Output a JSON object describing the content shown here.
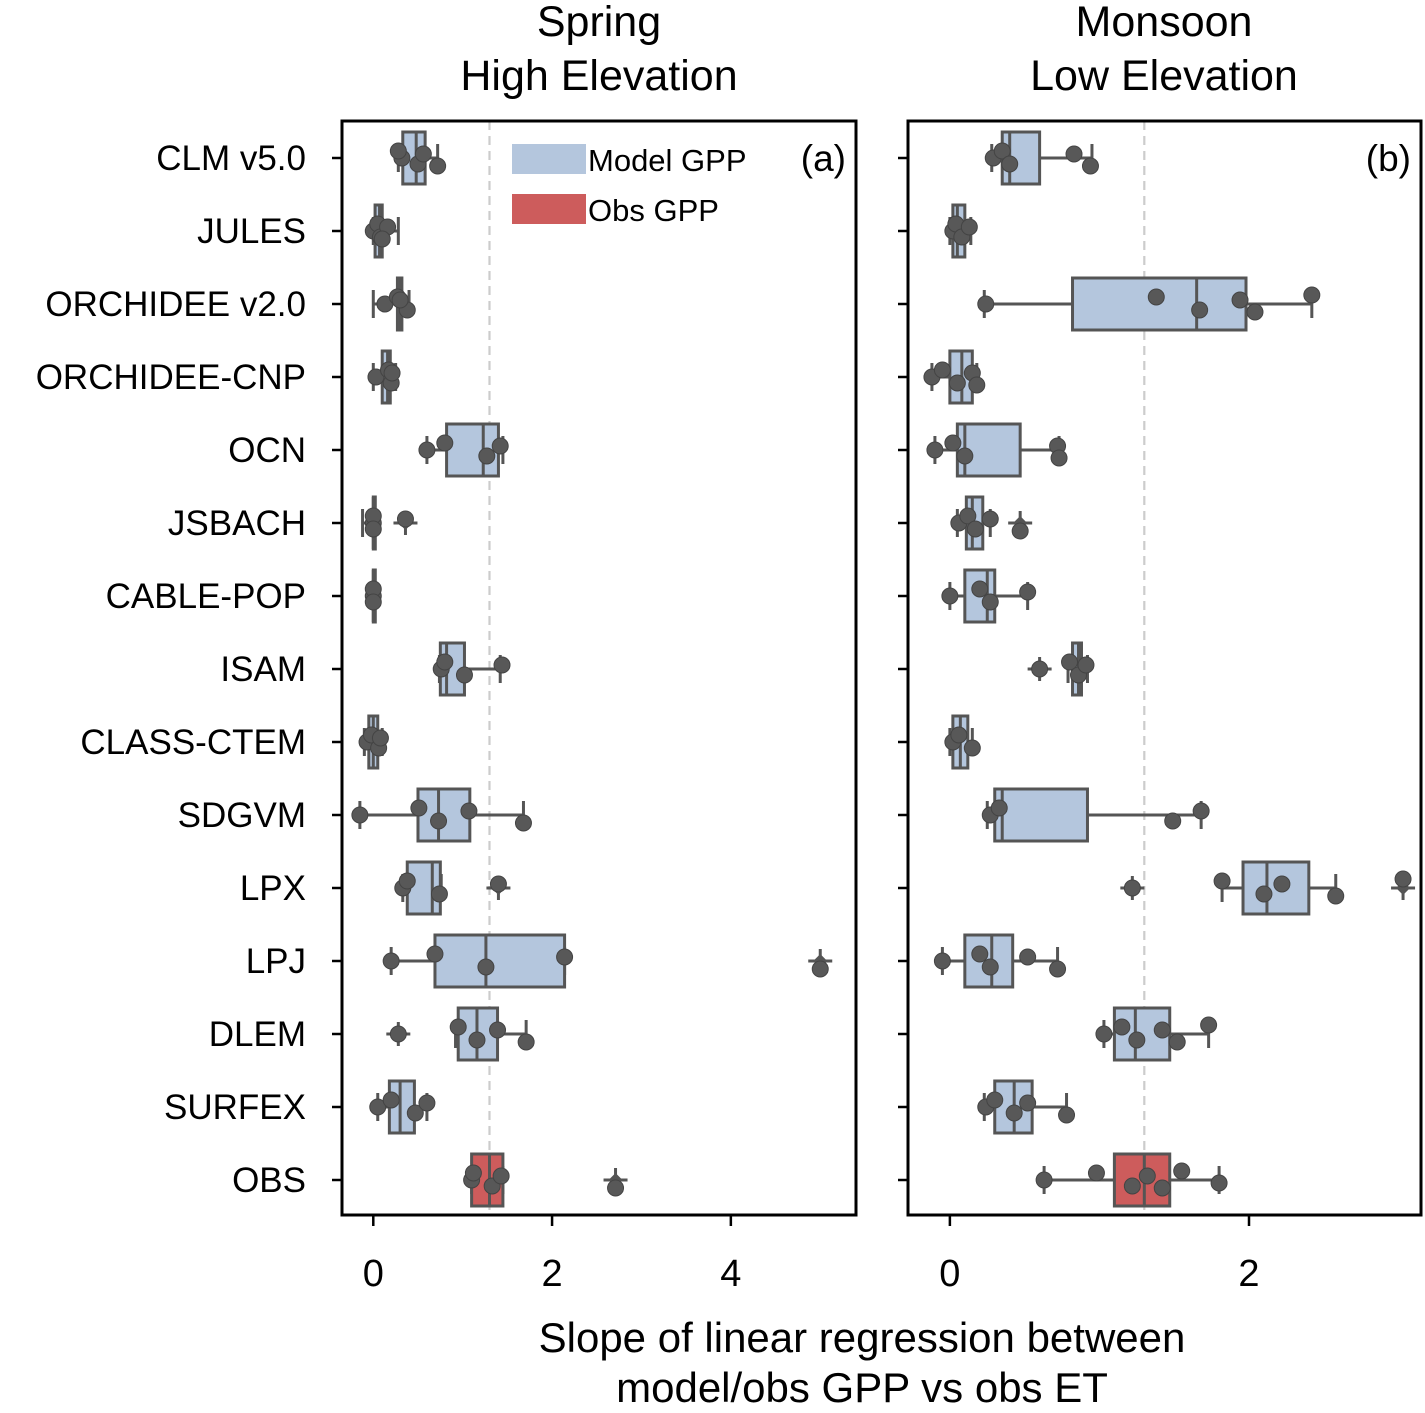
{
  "chart_data": {
    "type": "box",
    "xlabel": [
      "Slope of linear regression between",
      "model/obs GPP vs obs ET"
    ],
    "categories": [
      "CLM v5.0",
      "JULES",
      "ORCHIDEE v2.0",
      "ORCHIDEE-CNP",
      "OCN",
      "JSBACH",
      "CABLE-POP",
      "ISAM",
      "CLASS-CTEM",
      "SDGVM",
      "LPX",
      "LPJ",
      "DLEM",
      "SURFEX",
      "OBS"
    ],
    "legend": [
      {
        "label": "Model GPP",
        "color": "#b4c6dd"
      },
      {
        "label": "Obs GPP",
        "color": "#cd5c5c"
      }
    ],
    "colors": {
      "model": "#b4c6dd",
      "obs": "#cd5c5c",
      "edge": "#555555",
      "point": "#585858",
      "reference_line": "#cccccc"
    },
    "panels": [
      {
        "title": [
          "Spring",
          "High Elevation"
        ],
        "label": "(a)",
        "xlim": [
          -0.35,
          5.4
        ],
        "xticks": [
          0,
          2,
          4
        ],
        "reference_line": 1.3,
        "boxes": [
          {
            "name": "CLM v5.0",
            "q1": 0.33,
            "median": 0.48,
            "q3": 0.58,
            "whislo": 0.28,
            "whishi": 0.72,
            "fliers": [],
            "points": [
              0.32,
              0.28,
              0.5,
              0.56,
              0.72
            ]
          },
          {
            "name": "JULES",
            "q1": 0.02,
            "median": 0.07,
            "q3": 0.1,
            "whislo": 0.0,
            "whishi": 0.28,
            "fliers": [],
            "points": [
              0.0,
              0.05,
              0.08,
              0.16,
              0.1
            ]
          },
          {
            "name": "ORCHIDEE v2.0",
            "q1": 0.27,
            "median": 0.3,
            "q3": 0.32,
            "whislo": 0.0,
            "whishi": 0.4,
            "fliers": [],
            "points": [
              0.13,
              0.27,
              0.38,
              0.3
            ]
          },
          {
            "name": "ORCHIDEE-CNP",
            "q1": 0.1,
            "median": 0.16,
            "q3": 0.19,
            "whislo": 0.0,
            "whishi": 0.25,
            "fliers": [],
            "points": [
              0.03,
              0.17,
              0.2,
              0.21
            ]
          },
          {
            "name": "OCN",
            "q1": 0.82,
            "median": 1.23,
            "q3": 1.4,
            "whislo": 0.6,
            "whishi": 1.45,
            "fliers": [],
            "points": [
              0.6,
              0.8,
              1.27,
              1.42
            ]
          },
          {
            "name": "JSBACH",
            "q1": 0.0,
            "median": 0.0,
            "q3": 0.0,
            "whislo": -0.12,
            "whishi": 0.0,
            "fliers": [
              0.36
            ],
            "points": [
              0.0,
              0.0,
              0.0,
              0.36
            ]
          },
          {
            "name": "CABLE-POP",
            "q1": 0.0,
            "median": 0.0,
            "q3": 0.0,
            "whislo": 0.0,
            "whishi": 0.0,
            "fliers": [],
            "points": [
              0.0,
              0.0,
              0.0
            ]
          },
          {
            "name": "ISAM",
            "q1": 0.75,
            "median": 0.82,
            "q3": 1.02,
            "whislo": 0.74,
            "whishi": 1.42,
            "fliers": [],
            "points": [
              0.76,
              0.8,
              1.02,
              1.44
            ]
          },
          {
            "name": "CLASS-CTEM",
            "q1": -0.05,
            "median": 0.0,
            "q3": 0.05,
            "whislo": -0.1,
            "whishi": 0.1,
            "fliers": [],
            "points": [
              -0.07,
              -0.02,
              0.06,
              0.08
            ]
          },
          {
            "name": "SDGVM",
            "q1": 0.5,
            "median": 0.73,
            "q3": 1.08,
            "whislo": -0.15,
            "whishi": 1.68,
            "fliers": [],
            "points": [
              -0.15,
              0.51,
              0.73,
              1.07,
              1.68
            ]
          },
          {
            "name": "LPX",
            "q1": 0.38,
            "median": 0.66,
            "q3": 0.75,
            "whislo": 0.33,
            "whishi": 0.76,
            "fliers": [
              1.4
            ],
            "points": [
              0.33,
              0.38,
              0.74,
              1.4
            ]
          },
          {
            "name": "LPJ",
            "q1": 0.69,
            "median": 1.26,
            "q3": 2.14,
            "whislo": 0.2,
            "whishi": 2.14,
            "fliers": [
              5.0
            ],
            "points": [
              0.2,
              0.69,
              1.26,
              2.14,
              5.0
            ]
          },
          {
            "name": "DLEM",
            "q1": 0.95,
            "median": 1.16,
            "q3": 1.39,
            "whislo": 0.92,
            "whishi": 1.71,
            "fliers": [
              0.28
            ],
            "points": [
              0.28,
              0.95,
              1.16,
              1.39,
              1.71
            ]
          },
          {
            "name": "SURFEX",
            "q1": 0.18,
            "median": 0.3,
            "q3": 0.46,
            "whislo": 0.05,
            "whishi": 0.6,
            "fliers": [],
            "points": [
              0.05,
              0.2,
              0.47,
              0.6
            ]
          },
          {
            "name": "OBS",
            "q1": 1.1,
            "median": 1.3,
            "q3": 1.45,
            "whislo": 1.1,
            "whishi": 1.45,
            "fliers": [
              2.71
            ],
            "points": [
              1.1,
              1.12,
              1.33,
              1.43,
              2.71
            ]
          }
        ]
      },
      {
        "title": [
          "Monsoon",
          "Low Elevation"
        ],
        "label": "(b)",
        "xlim": [
          -0.28,
          3.15
        ],
        "xticks": [
          0,
          2
        ],
        "reference_line": 1.3,
        "boxes": [
          {
            "name": "CLM v5.0",
            "q1": 0.35,
            "median": 0.4,
            "q3": 0.6,
            "whislo": 0.28,
            "whishi": 0.95,
            "fliers": [],
            "points": [
              0.29,
              0.35,
              0.4,
              0.83,
              0.94
            ]
          },
          {
            "name": "JULES",
            "q1": 0.02,
            "median": 0.05,
            "q3": 0.1,
            "whislo": 0.0,
            "whishi": 0.14,
            "fliers": [],
            "points": [
              0.02,
              0.04,
              0.08,
              0.13
            ]
          },
          {
            "name": "ORCHIDEE v2.0",
            "q1": 0.82,
            "median": 1.65,
            "q3": 1.98,
            "whislo": 0.23,
            "whishi": 2.42,
            "fliers": [],
            "points": [
              0.24,
              1.38,
              1.67,
              1.94,
              2.04,
              2.42
            ]
          },
          {
            "name": "ORCHIDEE-CNP",
            "q1": 0.0,
            "median": 0.08,
            "q3": 0.15,
            "whislo": -0.12,
            "whishi": 0.18,
            "fliers": [],
            "points": [
              -0.12,
              -0.05,
              0.05,
              0.15,
              0.18
            ]
          },
          {
            "name": "OCN",
            "q1": 0.05,
            "median": 0.1,
            "q3": 0.47,
            "whislo": -0.1,
            "whishi": 0.73,
            "fliers": [],
            "points": [
              -0.1,
              0.02,
              0.1,
              0.72,
              0.73
            ]
          },
          {
            "name": "JSBACH",
            "q1": 0.11,
            "median": 0.15,
            "q3": 0.22,
            "whislo": 0.05,
            "whishi": 0.27,
            "fliers": [
              0.47
            ],
            "points": [
              0.06,
              0.12,
              0.17,
              0.27,
              0.47
            ]
          },
          {
            "name": "CABLE-POP",
            "q1": 0.1,
            "median": 0.25,
            "q3": 0.3,
            "whislo": 0.0,
            "whishi": 0.52,
            "fliers": [],
            "points": [
              0.0,
              0.2,
              0.27,
              0.52
            ]
          },
          {
            "name": "ISAM",
            "q1": 0.82,
            "median": 0.86,
            "q3": 0.88,
            "whislo": 0.79,
            "whishi": 0.92,
            "fliers": [
              0.6
            ],
            "points": [
              0.6,
              0.8,
              0.86,
              0.91
            ]
          },
          {
            "name": "CLASS-CTEM",
            "q1": 0.02,
            "median": 0.07,
            "q3": 0.12,
            "whislo": 0.0,
            "whishi": 0.15,
            "fliers": [],
            "points": [
              0.02,
              0.06,
              0.15
            ]
          },
          {
            "name": "SDGVM",
            "q1": 0.3,
            "median": 0.35,
            "q3": 0.92,
            "whislo": 0.25,
            "whishi": 1.68,
            "fliers": [],
            "points": [
              0.27,
              0.33,
              1.49,
              1.68
            ]
          },
          {
            "name": "LPX",
            "q1": 1.96,
            "median": 2.12,
            "q3": 2.4,
            "whislo": 1.82,
            "whishi": 2.58,
            "fliers": [
              1.22,
              3.03
            ],
            "points": [
              1.22,
              1.82,
              2.1,
              2.22,
              2.58,
              3.03
            ]
          },
          {
            "name": "LPJ",
            "q1": 0.1,
            "median": 0.28,
            "q3": 0.42,
            "whislo": -0.05,
            "whishi": 0.72,
            "fliers": [],
            "points": [
              -0.05,
              0.2,
              0.27,
              0.52,
              0.72
            ]
          },
          {
            "name": "DLEM",
            "q1": 1.1,
            "median": 1.24,
            "q3": 1.47,
            "whislo": 1.03,
            "whishi": 1.73,
            "fliers": [],
            "points": [
              1.03,
              1.15,
              1.25,
              1.42,
              1.52,
              1.73
            ]
          },
          {
            "name": "SURFEX",
            "q1": 0.3,
            "median": 0.43,
            "q3": 0.55,
            "whislo": 0.23,
            "whishi": 0.78,
            "fliers": [],
            "points": [
              0.24,
              0.3,
              0.43,
              0.52,
              0.78
            ]
          },
          {
            "name": "OBS",
            "q1": 1.1,
            "median": 1.3,
            "q3": 1.47,
            "whislo": 0.63,
            "whishi": 1.8,
            "fliers": [],
            "points": [
              0.63,
              0.98,
              1.22,
              1.32,
              1.42,
              1.55,
              1.8
            ]
          }
        ]
      }
    ]
  }
}
